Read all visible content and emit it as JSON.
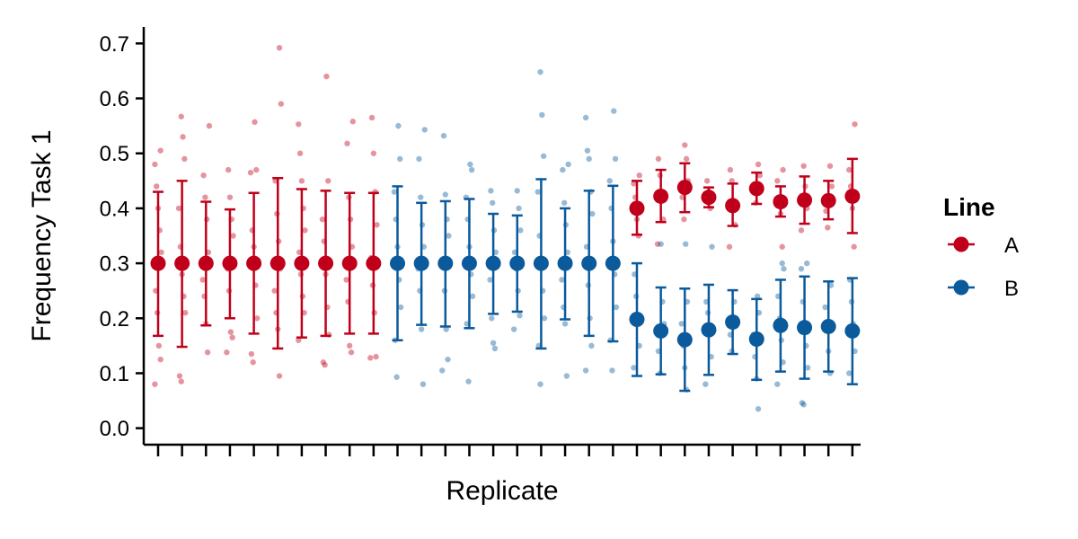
{
  "chart_data": {
    "type": "scatter",
    "xlabel": "Replicate",
    "ylabel": "Frequency Task 1",
    "ylim": [
      -0.03,
      0.73
    ],
    "yticks": [
      "0.0",
      "0.1",
      "0.2",
      "0.3",
      "0.4",
      "0.5",
      "0.6",
      "0.7"
    ],
    "x_tick_count": 30,
    "grid": false,
    "legend": {
      "title": "Line",
      "position": "right",
      "entries": [
        {
          "label": "A",
          "color": "#c0001a"
        },
        {
          "label": "B",
          "color": "#0a5a9c"
        }
      ]
    },
    "summary_points": [
      {
        "replicate": 1,
        "line": "A",
        "mean": 0.3,
        "lower": 0.168,
        "upper": 0.43
      },
      {
        "replicate": 2,
        "line": "A",
        "mean": 0.3,
        "lower": 0.148,
        "upper": 0.45
      },
      {
        "replicate": 3,
        "line": "A",
        "mean": 0.3,
        "lower": 0.187,
        "upper": 0.412
      },
      {
        "replicate": 4,
        "line": "A",
        "mean": 0.3,
        "lower": 0.2,
        "upper": 0.398
      },
      {
        "replicate": 5,
        "line": "A",
        "mean": 0.3,
        "lower": 0.172,
        "upper": 0.428
      },
      {
        "replicate": 6,
        "line": "A",
        "mean": 0.3,
        "lower": 0.145,
        "upper": 0.455
      },
      {
        "replicate": 7,
        "line": "A",
        "mean": 0.3,
        "lower": 0.165,
        "upper": 0.435
      },
      {
        "replicate": 8,
        "line": "A",
        "mean": 0.3,
        "lower": 0.168,
        "upper": 0.432
      },
      {
        "replicate": 9,
        "line": "A",
        "mean": 0.3,
        "lower": 0.172,
        "upper": 0.428
      },
      {
        "replicate": 10,
        "line": "A",
        "mean": 0.3,
        "lower": 0.172,
        "upper": 0.428
      },
      {
        "replicate": 11,
        "line": "B",
        "mean": 0.3,
        "lower": 0.16,
        "upper": 0.44
      },
      {
        "replicate": 12,
        "line": "B",
        "mean": 0.3,
        "lower": 0.188,
        "upper": 0.41
      },
      {
        "replicate": 13,
        "line": "B",
        "mean": 0.3,
        "lower": 0.185,
        "upper": 0.413
      },
      {
        "replicate": 14,
        "line": "B",
        "mean": 0.3,
        "lower": 0.182,
        "upper": 0.417
      },
      {
        "replicate": 15,
        "line": "B",
        "mean": 0.3,
        "lower": 0.208,
        "upper": 0.39
      },
      {
        "replicate": 16,
        "line": "B",
        "mean": 0.3,
        "lower": 0.212,
        "upper": 0.387
      },
      {
        "replicate": 17,
        "line": "B",
        "mean": 0.3,
        "lower": 0.145,
        "upper": 0.453
      },
      {
        "replicate": 18,
        "line": "B",
        "mean": 0.3,
        "lower": 0.198,
        "upper": 0.4
      },
      {
        "replicate": 19,
        "line": "B",
        "mean": 0.3,
        "lower": 0.168,
        "upper": 0.432
      },
      {
        "replicate": 20,
        "line": "B",
        "mean": 0.3,
        "lower": 0.158,
        "upper": 0.441
      },
      {
        "replicate": 21,
        "line": "A",
        "mean": 0.4,
        "lower": 0.352,
        "upper": 0.45
      },
      {
        "replicate": 22,
        "line": "A",
        "mean": 0.422,
        "lower": 0.375,
        "upper": 0.47
      },
      {
        "replicate": 23,
        "line": "A",
        "mean": 0.438,
        "lower": 0.393,
        "upper": 0.482
      },
      {
        "replicate": 24,
        "line": "A",
        "mean": 0.42,
        "lower": 0.402,
        "upper": 0.438
      },
      {
        "replicate": 25,
        "line": "A",
        "mean": 0.405,
        "lower": 0.368,
        "upper": 0.445
      },
      {
        "replicate": 26,
        "line": "A",
        "mean": 0.436,
        "lower": 0.408,
        "upper": 0.465
      },
      {
        "replicate": 27,
        "line": "A",
        "mean": 0.412,
        "lower": 0.385,
        "upper": 0.44
      },
      {
        "replicate": 28,
        "line": "A",
        "mean": 0.415,
        "lower": 0.372,
        "upper": 0.458
      },
      {
        "replicate": 29,
        "line": "A",
        "mean": 0.414,
        "lower": 0.38,
        "upper": 0.45
      },
      {
        "replicate": 30,
        "line": "A",
        "mean": 0.422,
        "lower": 0.355,
        "upper": 0.49
      },
      {
        "replicate": 21,
        "line": "B",
        "mean": 0.198,
        "lower": 0.095,
        "upper": 0.3
      },
      {
        "replicate": 22,
        "line": "B",
        "mean": 0.177,
        "lower": 0.098,
        "upper": 0.256
      },
      {
        "replicate": 23,
        "line": "B",
        "mean": 0.161,
        "lower": 0.068,
        "upper": 0.254
      },
      {
        "replicate": 24,
        "line": "B",
        "mean": 0.179,
        "lower": 0.097,
        "upper": 0.261
      },
      {
        "replicate": 25,
        "line": "B",
        "mean": 0.193,
        "lower": 0.135,
        "upper": 0.251
      },
      {
        "replicate": 26,
        "line": "B",
        "mean": 0.162,
        "lower": 0.088,
        "upper": 0.235
      },
      {
        "replicate": 27,
        "line": "B",
        "mean": 0.187,
        "lower": 0.103,
        "upper": 0.27
      },
      {
        "replicate": 28,
        "line": "B",
        "mean": 0.183,
        "lower": 0.09,
        "upper": 0.276
      },
      {
        "replicate": 29,
        "line": "B",
        "mean": 0.185,
        "lower": 0.103,
        "upper": 0.267
      },
      {
        "replicate": 30,
        "line": "B",
        "mean": 0.177,
        "lower": 0.08,
        "upper": 0.273
      }
    ],
    "raw_points": [
      {
        "replicate": 1,
        "line": "A",
        "values": [
          0.08,
          0.125,
          0.15,
          0.21,
          0.25,
          0.32,
          0.36,
          0.4,
          0.44,
          0.48,
          0.505
        ]
      },
      {
        "replicate": 2,
        "line": "A",
        "values": [
          0.085,
          0.095,
          0.21,
          0.24,
          0.28,
          0.33,
          0.4,
          0.49,
          0.53,
          0.567
        ]
      },
      {
        "replicate": 3,
        "line": "A",
        "values": [
          0.138,
          0.19,
          0.24,
          0.27,
          0.32,
          0.38,
          0.42,
          0.46,
          0.55
        ]
      },
      {
        "replicate": 4,
        "line": "A",
        "values": [
          0.138,
          0.165,
          0.175,
          0.25,
          0.29,
          0.35,
          0.38,
          0.42,
          0.47
        ]
      },
      {
        "replicate": 5,
        "line": "A",
        "values": [
          0.12,
          0.135,
          0.2,
          0.26,
          0.33,
          0.36,
          0.465,
          0.47,
          0.557
        ]
      },
      {
        "replicate": 6,
        "line": "A",
        "values": [
          0.095,
          0.18,
          0.21,
          0.25,
          0.29,
          0.34,
          0.39,
          0.45,
          0.59,
          0.692
        ]
      },
      {
        "replicate": 7,
        "line": "A",
        "values": [
          0.16,
          0.21,
          0.24,
          0.28,
          0.32,
          0.36,
          0.4,
          0.45,
          0.5,
          0.553
        ]
      },
      {
        "replicate": 8,
        "line": "A",
        "values": [
          0.115,
          0.12,
          0.17,
          0.22,
          0.28,
          0.34,
          0.38,
          0.45,
          0.64
        ]
      },
      {
        "replicate": 9,
        "line": "A",
        "values": [
          0.138,
          0.15,
          0.23,
          0.27,
          0.33,
          0.38,
          0.42,
          0.518,
          0.558
        ]
      },
      {
        "replicate": 10,
        "line": "A",
        "values": [
          0.128,
          0.13,
          0.21,
          0.26,
          0.31,
          0.37,
          0.43,
          0.5,
          0.565
        ]
      },
      {
        "replicate": 11,
        "line": "B",
        "values": [
          0.093,
          0.16,
          0.22,
          0.27,
          0.33,
          0.38,
          0.43,
          0.49,
          0.55
        ]
      },
      {
        "replicate": 12,
        "line": "B",
        "values": [
          0.08,
          0.18,
          0.25,
          0.29,
          0.33,
          0.37,
          0.42,
          0.49,
          0.543
        ]
      },
      {
        "replicate": 13,
        "line": "B",
        "values": [
          0.105,
          0.125,
          0.18,
          0.25,
          0.3,
          0.35,
          0.38,
          0.425,
          0.532
        ]
      },
      {
        "replicate": 14,
        "line": "B",
        "values": [
          0.085,
          0.19,
          0.24,
          0.28,
          0.33,
          0.38,
          0.42,
          0.47,
          0.48
        ]
      },
      {
        "replicate": 15,
        "line": "B",
        "values": [
          0.145,
          0.155,
          0.2,
          0.27,
          0.32,
          0.36,
          0.41,
          0.432
        ]
      },
      {
        "replicate": 16,
        "line": "B",
        "values": [
          0.18,
          0.205,
          0.25,
          0.29,
          0.32,
          0.36,
          0.4,
          0.432
        ]
      },
      {
        "replicate": 17,
        "line": "B",
        "values": [
          0.08,
          0.15,
          0.2,
          0.25,
          0.3,
          0.35,
          0.43,
          0.495,
          0.57,
          0.648
        ]
      },
      {
        "replicate": 18,
        "line": "B",
        "values": [
          0.095,
          0.19,
          0.22,
          0.27,
          0.32,
          0.37,
          0.41,
          0.47,
          0.48
        ]
      },
      {
        "replicate": 19,
        "line": "B",
        "values": [
          0.105,
          0.15,
          0.2,
          0.26,
          0.33,
          0.39,
          0.43,
          0.49,
          0.505,
          0.565
        ]
      },
      {
        "replicate": 20,
        "line": "B",
        "values": [
          0.105,
          0.16,
          0.22,
          0.28,
          0.34,
          0.4,
          0.45,
          0.49,
          0.577
        ]
      },
      {
        "replicate": 21,
        "line": "A",
        "values": [
          0.35,
          0.38,
          0.42,
          0.445,
          0.46
        ]
      },
      {
        "replicate": 22,
        "line": "A",
        "values": [
          0.335,
          0.38,
          0.43,
          0.46,
          0.49
        ]
      },
      {
        "replicate": 23,
        "line": "A",
        "values": [
          0.38,
          0.42,
          0.45,
          0.49,
          0.515
        ]
      },
      {
        "replicate": 24,
        "line": "A",
        "values": [
          0.4,
          0.43,
          0.45
        ]
      },
      {
        "replicate": 25,
        "line": "A",
        "values": [
          0.33,
          0.37,
          0.41,
          0.45,
          0.47
        ]
      },
      {
        "replicate": 26,
        "line": "A",
        "values": [
          0.41,
          0.43,
          0.46,
          0.48
        ]
      },
      {
        "replicate": 27,
        "line": "A",
        "values": [
          0.33,
          0.39,
          0.42,
          0.45,
          0.47
        ]
      },
      {
        "replicate": 28,
        "line": "A",
        "values": [
          0.36,
          0.4,
          0.44,
          0.477
        ]
      },
      {
        "replicate": 29,
        "line": "A",
        "values": [
          0.365,
          0.395,
          0.44,
          0.477
        ]
      },
      {
        "replicate": 30,
        "line": "A",
        "values": [
          0.33,
          0.4,
          0.44,
          0.47,
          0.553
        ]
      },
      {
        "replicate": 21,
        "line": "B",
        "values": [
          0.11,
          0.15,
          0.2,
          0.24,
          0.28
        ]
      },
      {
        "replicate": 22,
        "line": "B",
        "values": [
          0.1,
          0.14,
          0.19,
          0.23,
          0.335
        ]
      },
      {
        "replicate": 23,
        "line": "B",
        "values": [
          0.07,
          0.11,
          0.15,
          0.19,
          0.23,
          0.335
        ]
      },
      {
        "replicate": 24,
        "line": "B",
        "values": [
          0.08,
          0.13,
          0.17,
          0.21,
          0.23,
          0.33
        ]
      },
      {
        "replicate": 25,
        "line": "B",
        "values": [
          0.14,
          0.17,
          0.2,
          0.23
        ]
      },
      {
        "replicate": 26,
        "line": "B",
        "values": [
          0.035,
          0.09,
          0.13,
          0.17,
          0.21,
          0.24
        ]
      },
      {
        "replicate": 27,
        "line": "B",
        "values": [
          0.08,
          0.12,
          0.16,
          0.2,
          0.24,
          0.29,
          0.3
        ]
      },
      {
        "replicate": 28,
        "line": "B",
        "values": [
          0.043,
          0.046,
          0.11,
          0.15,
          0.19,
          0.23,
          0.29,
          0.3
        ]
      },
      {
        "replicate": 29,
        "line": "B",
        "values": [
          0.1,
          0.14,
          0.18,
          0.22,
          0.26
        ]
      },
      {
        "replicate": 30,
        "line": "B",
        "values": [
          0.1,
          0.14,
          0.19,
          0.23,
          0.27
        ]
      }
    ]
  }
}
